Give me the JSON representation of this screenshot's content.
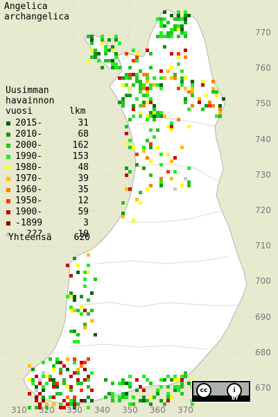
{
  "title": {
    "line1": "Angelica",
    "line2": "archangelica"
  },
  "legend": {
    "header1": "Uusimman",
    "header2": "havainnon",
    "header3": "vuosi",
    "count_header": "lkm",
    "items": [
      {
        "label": "2015-",
        "count": "31",
        "color": "#006400"
      },
      {
        "label": "2010-",
        "count": "68",
        "color": "#119811"
      },
      {
        "label": "2000-",
        "count": "162",
        "color": "#22c222"
      },
      {
        "label": "1990-",
        "count": "153",
        "color": "#22ee22"
      },
      {
        "label": "1980-",
        "count": "48",
        "color": "#ffff00"
      },
      {
        "label": "1970-",
        "count": "39",
        "color": "#ffbf00"
      },
      {
        "label": "1960-",
        "count": "35",
        "color": "#ff7f00"
      },
      {
        "label": "1950-",
        "count": "12",
        "color": "#ff3300"
      },
      {
        "label": "1900-",
        "count": "59",
        "color": "#cc0000"
      },
      {
        "label": "-1899",
        "count": "3",
        "color": "#800000"
      },
      {
        "label": "???",
        "count": "10",
        "color": "#c8c8c8"
      }
    ],
    "total_label": "Yhteensä",
    "total_count": "620"
  },
  "axes": {
    "y_ticks": [
      "770",
      "760",
      "750",
      "740",
      "730",
      "720",
      "710",
      "700",
      "690",
      "680",
      "670"
    ],
    "x_ticks": [
      "310",
      "320",
      "330",
      "340",
      "350",
      "360",
      "370"
    ]
  },
  "license_badge": {
    "by_text": "BY",
    "cc_text": "cc"
  },
  "colors": {
    "background": "#e8ead0",
    "land": "#ffffff",
    "grid": "#d8d8c0",
    "outline": "#b0b0b0"
  }
}
